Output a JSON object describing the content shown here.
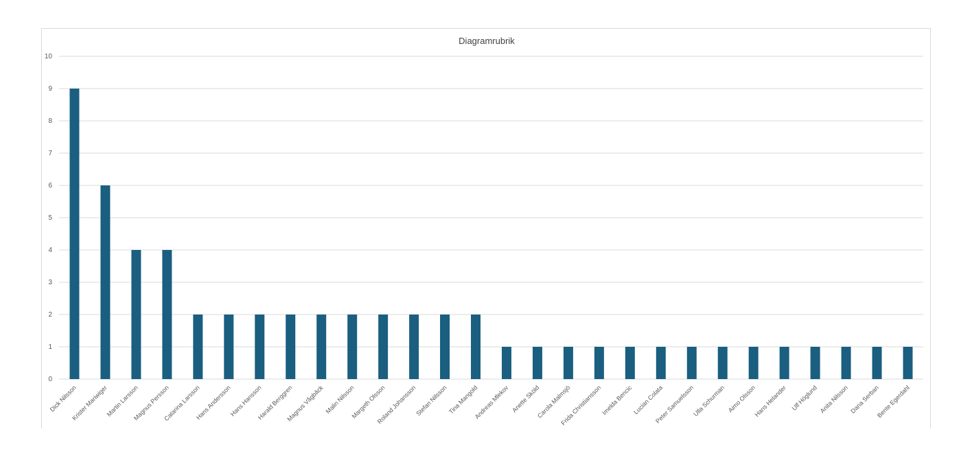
{
  "chart_data": {
    "type": "bar",
    "title": "Diagramrubrik",
    "xlabel": "",
    "ylabel": "",
    "ylim": [
      0,
      10
    ],
    "yticks": [
      0,
      1,
      2,
      3,
      4,
      5,
      6,
      7,
      8,
      9,
      10
    ],
    "grid": true,
    "legend": "none",
    "bar_color": "#1a5e80",
    "categories": [
      "Dick Nilsson",
      "Krister Mariwiger",
      "Martin Larsson",
      "Magnus Persson",
      "Catarina Larsson",
      "Hans Andersson",
      "Hans Hansson",
      "Harald Berggren",
      "Magnus Vågbäck",
      "Malin Nilsson",
      "Margeth Olsson",
      "Roland Johansson",
      "Stefan Nilsson",
      "Tina Mangold",
      "Andreas Mlekov",
      "Anette Sköld",
      "Carola Malmsjö",
      "Frida Christiansson",
      "Imelda Bencic",
      "Lucian Colata",
      "Peter Samuelsson",
      "Ulla Schurman",
      "Aimo Olsson",
      "Hans Helander",
      "Ulf Höglund",
      "Anita Nilsson",
      "Dana Serban",
      "Bente Egerdahl"
    ],
    "values": [
      9,
      6,
      4,
      4,
      2,
      2,
      2,
      2,
      2,
      2,
      2,
      2,
      2,
      2,
      1,
      1,
      1,
      1,
      1,
      1,
      1,
      1,
      1,
      1,
      1,
      1,
      1,
      1
    ]
  }
}
